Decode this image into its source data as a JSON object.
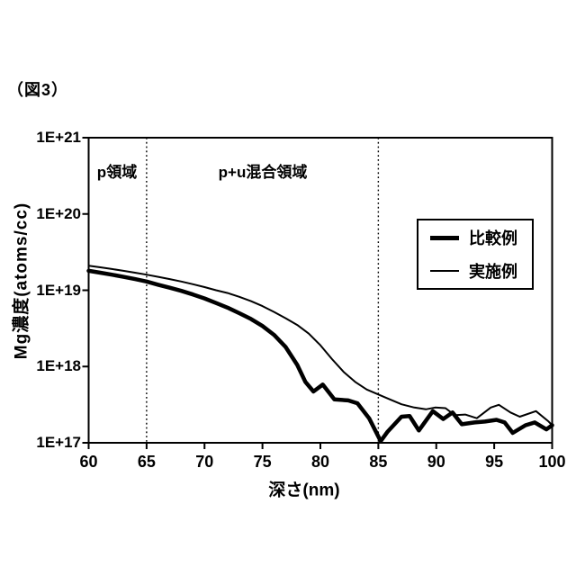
{
  "figure": {
    "label": "（図3）"
  },
  "colors": {
    "line": "#000000",
    "background": "#ffffff",
    "axis": "#000000"
  },
  "chart_data": {
    "type": "line",
    "title": "",
    "xlabel": "深さ(nm)",
    "ylabel": "Mg濃度(atoms/cc)",
    "x_range": [
      60,
      100
    ],
    "y_scale": "log",
    "y_range": [
      1e+17,
      1e+21
    ],
    "grid": false,
    "legend_position": "upper right",
    "x_ticks": [
      {
        "value": 60,
        "label": "60"
      },
      {
        "value": 65,
        "label": "65"
      },
      {
        "value": 70,
        "label": "70"
      },
      {
        "value": 75,
        "label": "75"
      },
      {
        "value": 80,
        "label": "80"
      },
      {
        "value": 85,
        "label": "85"
      },
      {
        "value": 90,
        "label": "90"
      },
      {
        "value": 95,
        "label": "95"
      },
      {
        "value": 100,
        "label": "100"
      }
    ],
    "y_ticks": [
      {
        "value": 1e+21,
        "label": "1E+21"
      },
      {
        "value": 1e+20,
        "label": "1E+20"
      },
      {
        "value": 1e+19,
        "label": "1E+19"
      },
      {
        "value": 1e+18,
        "label": "1E+18"
      },
      {
        "value": 1e+17,
        "label": "1E+17"
      }
    ],
    "reference_lines_x": [
      65,
      85
    ],
    "annotations": [
      {
        "text": "p領域",
        "x_center": 62.5
      },
      {
        "text": "p+u混合領域",
        "x_center": 75
      }
    ],
    "series": [
      {
        "name": "比較例",
        "style": "thick",
        "color": "#000000",
        "points": [
          [
            60,
            1.8e+19
          ],
          [
            61,
            1.7e+19
          ],
          [
            62,
            1.6e+19
          ],
          [
            63,
            1.5e+19
          ],
          [
            64,
            1.4e+19
          ],
          [
            65,
            1.3e+19
          ],
          [
            66,
            1.18e+19
          ],
          [
            67,
            1.08e+19
          ],
          [
            68,
            9.8e+18
          ],
          [
            69,
            8.8e+18
          ],
          [
            70,
            7.8e+18
          ],
          [
            71,
            6.8e+18
          ],
          [
            72,
            5.9e+18
          ],
          [
            73,
            5e+18
          ],
          [
            74,
            4.2e+18
          ],
          [
            75,
            3.4e+18
          ],
          [
            76,
            2.6e+18
          ],
          [
            77,
            1.8e+18
          ],
          [
            78,
            1.05e+18
          ],
          [
            78.7,
            6.3e+17
          ],
          [
            79.4,
            4.7e+17
          ],
          [
            80.2,
            5.8e+17
          ],
          [
            81.2,
            3.7e+17
          ],
          [
            82.4,
            3.6e+17
          ],
          [
            83.2,
            3.3e+17
          ],
          [
            84.2,
            2.1e+17
          ],
          [
            85.2,
            1.05e+17
          ],
          [
            85.8,
            1.4e+17
          ],
          [
            87,
            2.2e+17
          ],
          [
            87.7,
            2.25e+17
          ],
          [
            88.5,
            1.45e+17
          ],
          [
            89.7,
            2.6e+17
          ],
          [
            90.6,
            2.05e+17
          ],
          [
            91.4,
            2.5e+17
          ],
          [
            92.2,
            1.75e+17
          ],
          [
            93.3,
            1.85e+17
          ],
          [
            94.2,
            1.9e+17
          ],
          [
            95.2,
            2e+17
          ],
          [
            95.9,
            1.85e+17
          ],
          [
            96.6,
            1.35e+17
          ],
          [
            97.7,
            1.7e+17
          ],
          [
            98.5,
            1.85e+17
          ],
          [
            99.5,
            1.5e+17
          ],
          [
            100,
            1.7e+17
          ]
        ]
      },
      {
        "name": "実施例",
        "style": "thin",
        "color": "#000000",
        "points": [
          [
            60,
            2.1e+19
          ],
          [
            61,
            2e+19
          ],
          [
            62,
            1.9e+19
          ],
          [
            63,
            1.8e+19
          ],
          [
            64,
            1.7e+19
          ],
          [
            65,
            1.6e+19
          ],
          [
            66,
            1.5e+19
          ],
          [
            67,
            1.4e+19
          ],
          [
            68,
            1.3e+19
          ],
          [
            69,
            1.2e+19
          ],
          [
            70,
            1.1e+19
          ],
          [
            71,
            1e+19
          ],
          [
            72,
            9.2e+18
          ],
          [
            73,
            8.2e+18
          ],
          [
            74,
            7.2e+18
          ],
          [
            75,
            6.2e+18
          ],
          [
            76,
            5.2e+18
          ],
          [
            77,
            4.3e+18
          ],
          [
            78,
            3.5e+18
          ],
          [
            79,
            2.7e+18
          ],
          [
            80,
            1.9e+18
          ],
          [
            81,
            1.25e+18
          ],
          [
            82,
            8.5e+17
          ],
          [
            83,
            6.3e+17
          ],
          [
            84,
            5e+17
          ],
          [
            85,
            4.3e+17
          ],
          [
            86,
            3.7e+17
          ],
          [
            87,
            3.2e+17
          ],
          [
            88.1,
            2.9e+17
          ],
          [
            89.1,
            2.75e+17
          ],
          [
            89.9,
            2.9e+17
          ],
          [
            90.8,
            2.85e+17
          ],
          [
            91.6,
            2.3e+17
          ],
          [
            92.5,
            2.35e+17
          ],
          [
            93.5,
            2.1e+17
          ],
          [
            94.7,
            2.9e+17
          ],
          [
            95.4,
            3.15e+17
          ],
          [
            96.4,
            2.5e+17
          ],
          [
            97.2,
            2.2e+17
          ],
          [
            98.6,
            2.6e+17
          ],
          [
            99.7,
            1.9e+17
          ],
          [
            100,
            1.7e+17
          ]
        ]
      }
    ]
  }
}
